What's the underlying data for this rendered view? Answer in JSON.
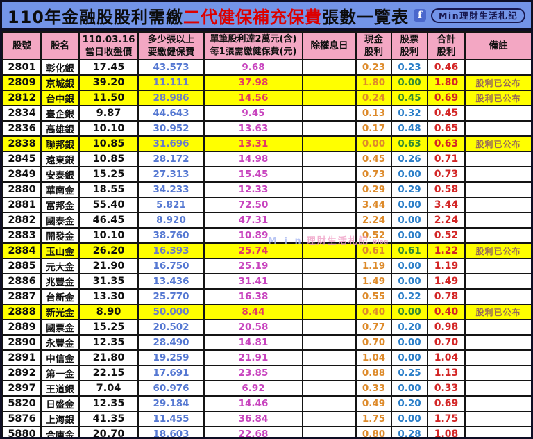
{
  "title": {
    "part1": "110年金融股股利需繳",
    "part2_red": "二代健保補充保費",
    "part3": "張數一覽表",
    "fb_letter": "f",
    "badge": "Min理財生活札記"
  },
  "watermark": {
    "part1": "M i n",
    "part2": "理財生活札記",
    "part3": "Blog"
  },
  "colors": {
    "title_bg": "#7394e8",
    "header_bg": "#f3a7c3",
    "highlight_bg": "#ffff00",
    "lots_blue": "#5578d2",
    "fee_magenta": "#c844be",
    "cash_orange": "#dd8a2a",
    "stock_blue": "#2a7ec8",
    "total_red": "#d32626",
    "remark_brown": "#96685a",
    "title_red": "#dd0000"
  },
  "table": {
    "headers": [
      {
        "l1": "股號",
        "l2": ""
      },
      {
        "l1": "股名",
        "l2": ""
      },
      {
        "l1": "110.03.16",
        "l2": "當日收盤價"
      },
      {
        "l1": "多少張以上",
        "l2": "要繳健保費"
      },
      {
        "l1": "單筆股利達2萬元(含)",
        "l2": "每1張需繳健保費(元)"
      },
      {
        "l1": "除權息日",
        "l2": ""
      },
      {
        "l1": "現金",
        "l2": "股利"
      },
      {
        "l1": "股票",
        "l2": "股利"
      },
      {
        "l1": "合計",
        "l2": "股利"
      },
      {
        "l1": "備註",
        "l2": ""
      }
    ],
    "rows": [
      {
        "code": "2801",
        "name": "彰化銀",
        "price": "17.45",
        "lots": "43.573",
        "fee": "9.68",
        "ex_date": "",
        "cash": "0.23",
        "stock": "0.23",
        "total": "0.46",
        "remark": "",
        "highlight": false
      },
      {
        "code": "2809",
        "name": "京城銀",
        "price": "39.20",
        "lots": "11.111",
        "fee": "37.98",
        "ex_date": "",
        "cash": "1.80",
        "stock": "0.00",
        "total": "1.80",
        "remark": "股利已公布",
        "highlight": true
      },
      {
        "code": "2812",
        "name": "台中銀",
        "price": "11.50",
        "lots": "28.986",
        "fee": "14.56",
        "ex_date": "",
        "cash": "0.24",
        "stock": "0.45",
        "total": "0.69",
        "remark": "股利已公布",
        "highlight": true
      },
      {
        "code": "2834",
        "name": "臺企銀",
        "price": "9.87",
        "lots": "44.643",
        "fee": "9.45",
        "ex_date": "",
        "cash": "0.13",
        "stock": "0.32",
        "total": "0.45",
        "remark": "",
        "highlight": false
      },
      {
        "code": "2836",
        "name": "高雄銀",
        "price": "10.10",
        "lots": "30.952",
        "fee": "13.63",
        "ex_date": "",
        "cash": "0.17",
        "stock": "0.48",
        "total": "0.65",
        "remark": "",
        "highlight": false
      },
      {
        "code": "2838",
        "name": "聯邦銀",
        "price": "10.85",
        "lots": "31.696",
        "fee": "13.31",
        "ex_date": "",
        "cash": "0.00",
        "stock": "0.63",
        "total": "0.63",
        "remark": "股利已公布",
        "highlight": true
      },
      {
        "code": "2845",
        "name": "遠東銀",
        "price": "10.85",
        "lots": "28.172",
        "fee": "14.98",
        "ex_date": "",
        "cash": "0.45",
        "stock": "0.26",
        "total": "0.71",
        "remark": "",
        "highlight": false
      },
      {
        "code": "2849",
        "name": "安泰銀",
        "price": "15.25",
        "lots": "27.313",
        "fee": "15.45",
        "ex_date": "",
        "cash": "0.73",
        "stock": "0.00",
        "total": "0.73",
        "remark": "",
        "highlight": false
      },
      {
        "code": "2880",
        "name": "華南金",
        "price": "18.55",
        "lots": "34.233",
        "fee": "12.33",
        "ex_date": "",
        "cash": "0.29",
        "stock": "0.29",
        "total": "0.58",
        "remark": "",
        "highlight": false
      },
      {
        "code": "2881",
        "name": "富邦金",
        "price": "55.40",
        "lots": "5.821",
        "fee": "72.50",
        "ex_date": "",
        "cash": "3.44",
        "stock": "0.00",
        "total": "3.44",
        "remark": "",
        "highlight": false
      },
      {
        "code": "2882",
        "name": "國泰金",
        "price": "46.45",
        "lots": "8.920",
        "fee": "47.31",
        "ex_date": "",
        "cash": "2.24",
        "stock": "0.00",
        "total": "2.24",
        "remark": "",
        "highlight": false
      },
      {
        "code": "2883",
        "name": "開發金",
        "price": "10.10",
        "lots": "38.760",
        "fee": "10.89",
        "ex_date": "",
        "cash": "0.52",
        "stock": "0.00",
        "total": "0.52",
        "remark": "",
        "highlight": false
      },
      {
        "code": "2884",
        "name": "玉山金",
        "price": "26.20",
        "lots": "16.393",
        "fee": "25.74",
        "ex_date": "",
        "cash": "0.61",
        "stock": "0.61",
        "total": "1.22",
        "remark": "股利已公布",
        "highlight": true
      },
      {
        "code": "2885",
        "name": "元大金",
        "price": "21.90",
        "lots": "16.750",
        "fee": "25.19",
        "ex_date": "",
        "cash": "1.19",
        "stock": "0.00",
        "total": "1.19",
        "remark": "",
        "highlight": false
      },
      {
        "code": "2886",
        "name": "兆豐金",
        "price": "31.35",
        "lots": "13.436",
        "fee": "31.41",
        "ex_date": "",
        "cash": "1.49",
        "stock": "0.00",
        "total": "1.49",
        "remark": "",
        "highlight": false
      },
      {
        "code": "2887",
        "name": "台新金",
        "price": "13.30",
        "lots": "25.770",
        "fee": "16.38",
        "ex_date": "",
        "cash": "0.55",
        "stock": "0.22",
        "total": "0.78",
        "remark": "",
        "highlight": false
      },
      {
        "code": "2888",
        "name": "新光金",
        "price": "8.90",
        "lots": "50.000",
        "fee": "8.44",
        "ex_date": "",
        "cash": "0.40",
        "stock": "0.00",
        "total": "0.40",
        "remark": "股利已公布",
        "highlight": true
      },
      {
        "code": "2889",
        "name": "國票金",
        "price": "15.25",
        "lots": "20.502",
        "fee": "20.58",
        "ex_date": "",
        "cash": "0.77",
        "stock": "0.20",
        "total": "0.98",
        "remark": "",
        "highlight": false
      },
      {
        "code": "2890",
        "name": "永豐金",
        "price": "12.35",
        "lots": "28.490",
        "fee": "14.81",
        "ex_date": "",
        "cash": "0.70",
        "stock": "0.00",
        "total": "0.70",
        "remark": "",
        "highlight": false
      },
      {
        "code": "2891",
        "name": "中信金",
        "price": "21.80",
        "lots": "19.259",
        "fee": "21.91",
        "ex_date": "",
        "cash": "1.04",
        "stock": "0.00",
        "total": "1.04",
        "remark": "",
        "highlight": false
      },
      {
        "code": "2892",
        "name": "第一金",
        "price": "22.15",
        "lots": "17.691",
        "fee": "23.85",
        "ex_date": "",
        "cash": "0.88",
        "stock": "0.25",
        "total": "1.13",
        "remark": "",
        "highlight": false
      },
      {
        "code": "2897",
        "name": "王道銀",
        "price": "7.04",
        "lots": "60.976",
        "fee": "6.92",
        "ex_date": "",
        "cash": "0.33",
        "stock": "0.00",
        "total": "0.33",
        "remark": "",
        "highlight": false
      },
      {
        "code": "5820",
        "name": "日盛金",
        "price": "12.35",
        "lots": "29.184",
        "fee": "14.46",
        "ex_date": "",
        "cash": "0.49",
        "stock": "0.20",
        "total": "0.69",
        "remark": "",
        "highlight": false
      },
      {
        "code": "5876",
        "name": "上海銀",
        "price": "41.35",
        "lots": "11.455",
        "fee": "36.84",
        "ex_date": "",
        "cash": "1.75",
        "stock": "0.00",
        "total": "1.75",
        "remark": "",
        "highlight": false
      },
      {
        "code": "5880",
        "name": "合庫金",
        "price": "20.70",
        "lots": "18.603",
        "fee": "22.68",
        "ex_date": "",
        "cash": "0.80",
        "stock": "0.28",
        "total": "1.08",
        "remark": "",
        "highlight": false
      }
    ]
  }
}
